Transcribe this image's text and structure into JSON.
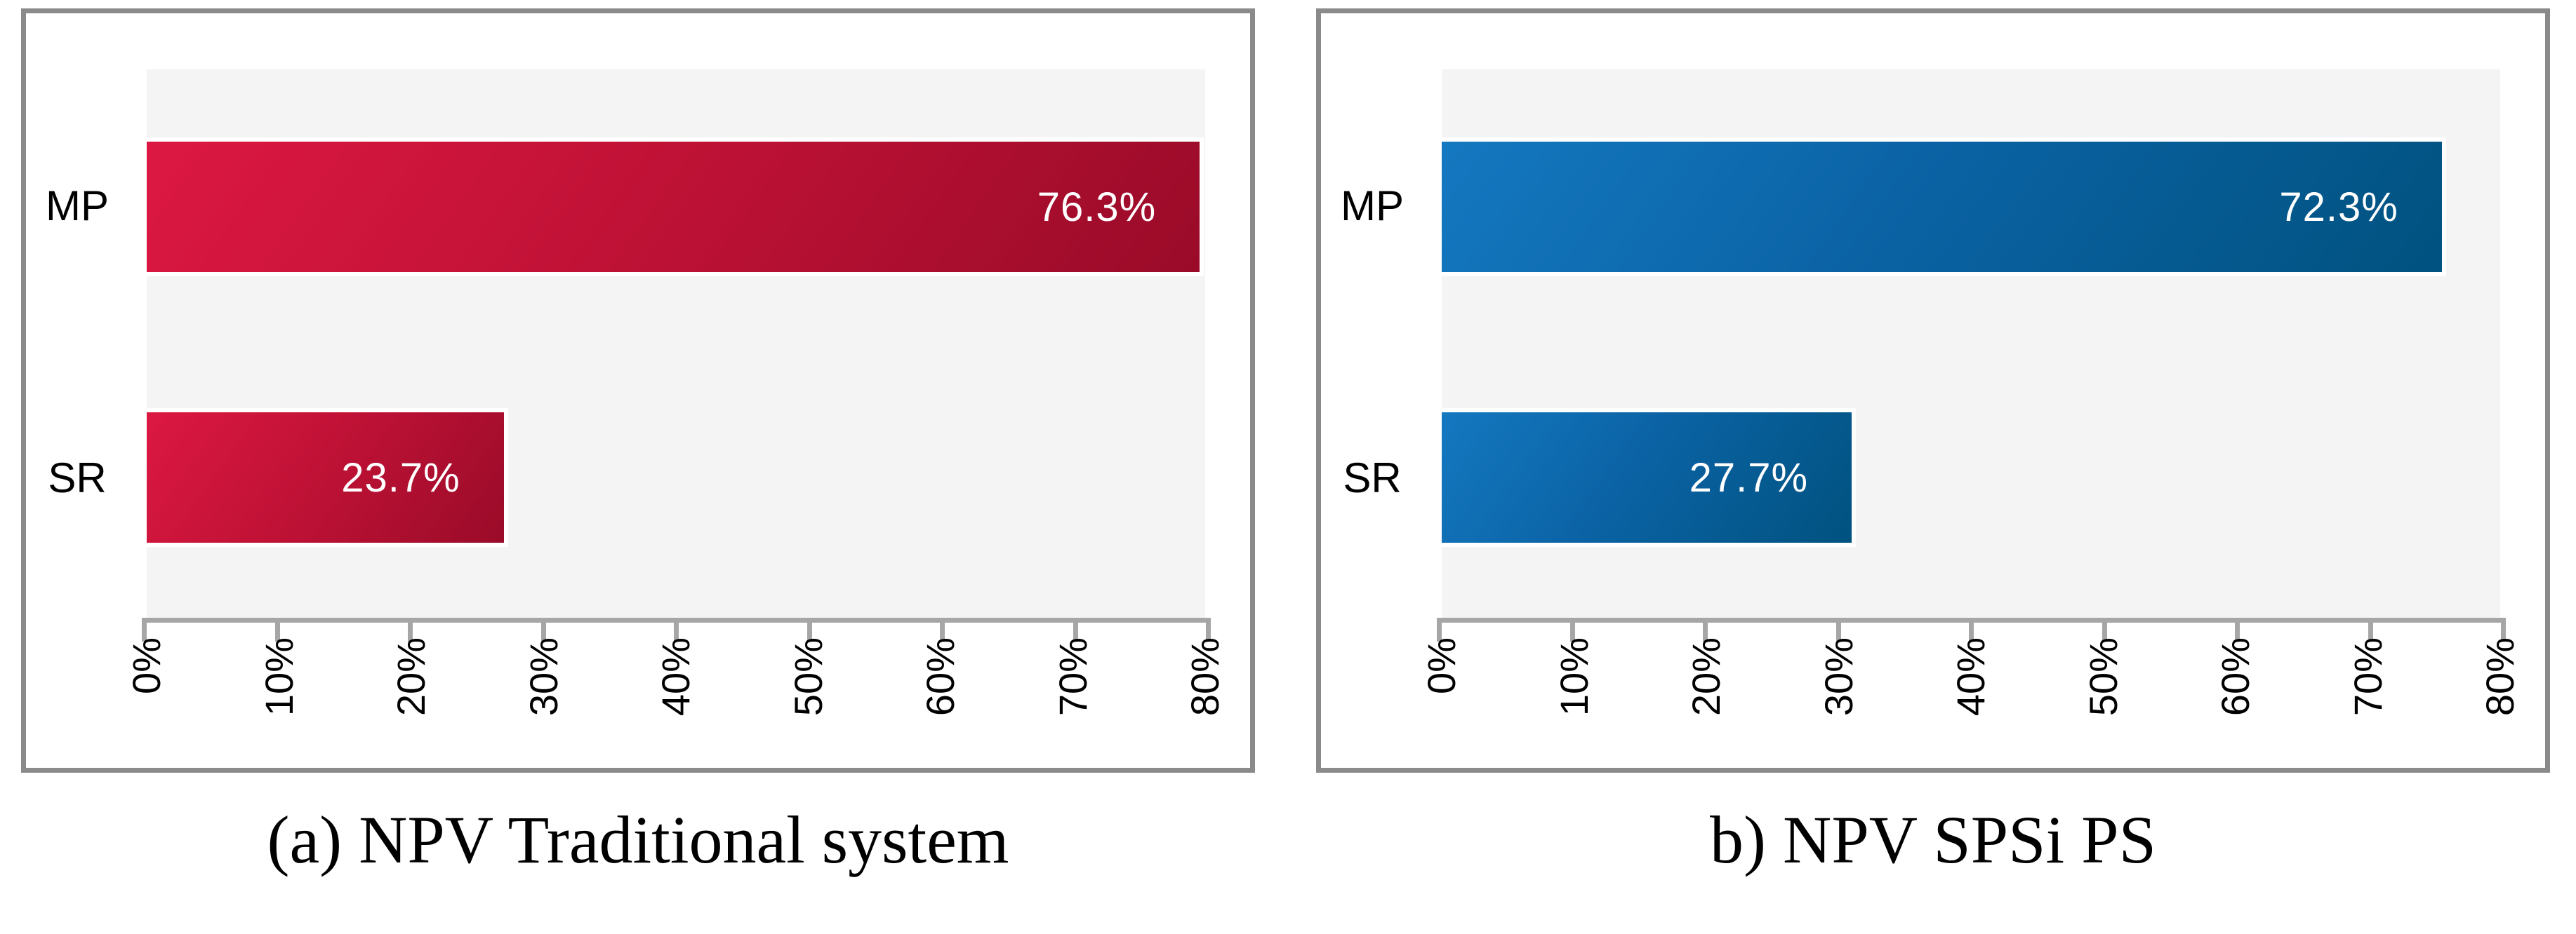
{
  "page": {
    "background": "#ffffff"
  },
  "chart_data": [
    {
      "type": "bar",
      "orientation": "horizontal",
      "title": "(a) NPV Traditional system",
      "categories": [
        "MP",
        "SR"
      ],
      "values": [
        76.3,
        23.7
      ],
      "value_labels": [
        "76.3%",
        "23.7%"
      ],
      "xlim": [
        0,
        80
      ],
      "x_tick_labels": [
        "0%",
        "10%",
        "20%",
        "30%",
        "40%",
        "50%",
        "60%",
        "70%",
        "80%"
      ],
      "grid": false,
      "legend": "none",
      "bar_gradient": [
        "#dc1842",
        "#9a0b29"
      ],
      "plot_background": "#f4f4f4",
      "axis_color": "#a6a6a6",
      "frame_color": "#8a8a8a",
      "value_label_color": "#ffffff"
    },
    {
      "type": "bar",
      "orientation": "horizontal",
      "title": "b) NPV SPSi PS",
      "categories": [
        "MP",
        "SR"
      ],
      "values": [
        72.3,
        27.7
      ],
      "value_labels": [
        "72.3%",
        "27.7%"
      ],
      "xlim": [
        0,
        80
      ],
      "x_tick_labels": [
        "0%",
        "10%",
        "20%",
        "30%",
        "40%",
        "50%",
        "60%",
        "70%",
        "80%"
      ],
      "grid": false,
      "legend": "none",
      "bar_gradient": [
        "#1478c0",
        "#00527f"
      ],
      "plot_background": "#f4f4f4",
      "axis_color": "#a6a6a6",
      "frame_color": "#8a8a8a",
      "value_label_color": "#ffffff"
    }
  ]
}
